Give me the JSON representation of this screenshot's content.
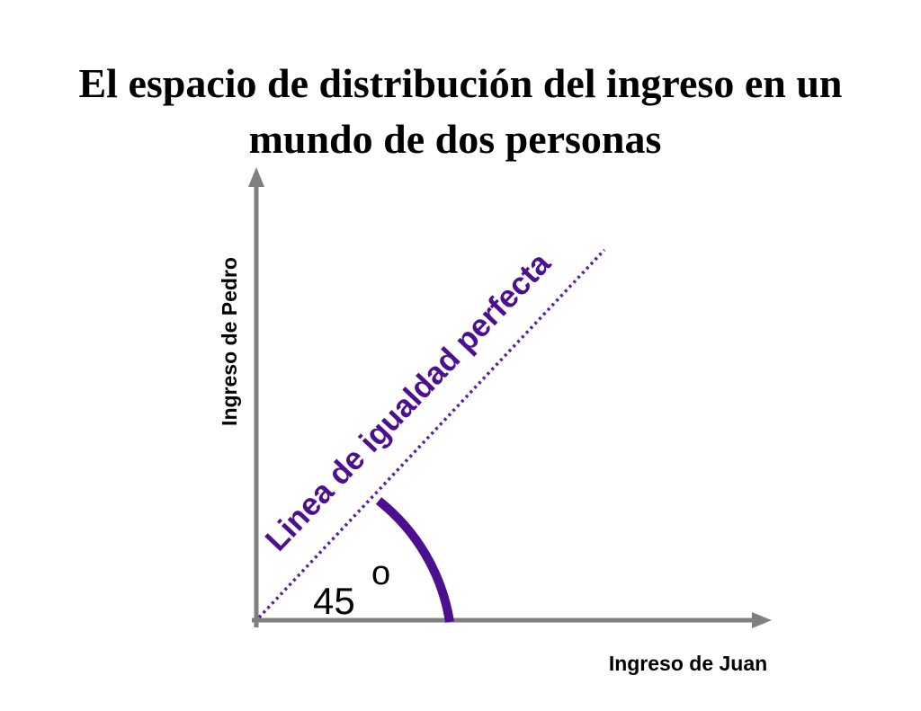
{
  "header": {
    "title_lines": [
      "El espacio de distribución del ingreso en un",
      "mundo de dos personas"
    ]
  },
  "diagram": {
    "y_axis_label": "Ingreso de Pedro",
    "x_axis_label": "Ingreso de Juan",
    "line_label": "Linea de igualdad perfecta",
    "angle_label": "45",
    "angle_unit": "o"
  }
}
